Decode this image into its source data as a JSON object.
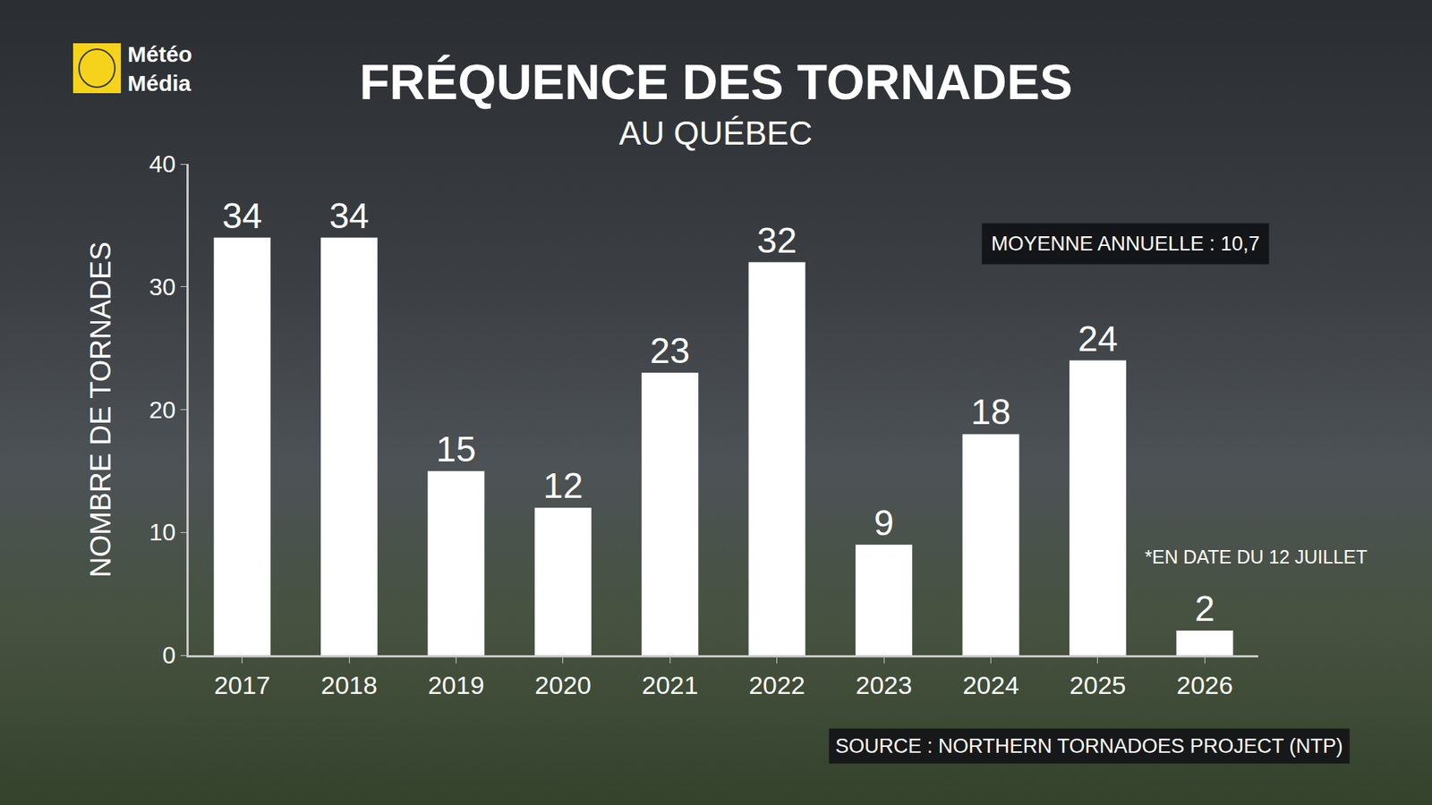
{
  "chart_data": {
    "type": "bar",
    "title": "FRÉQUENCE DES TORNADES",
    "subtitle": "AU QUÉBEC",
    "y_label": "NOMBRE DE TORNADES",
    "categories": [
      "2017",
      "2018",
      "2019",
      "2020",
      "2021",
      "2022",
      "2023",
      "2024",
      "2025",
      "2026"
    ],
    "values": [
      34,
      34,
      15,
      12,
      23,
      32,
      9,
      18,
      24,
      2
    ],
    "color": "#ffffff",
    "ylim": [
      0,
      40
    ],
    "yticks": [
      0,
      10,
      20,
      30,
      40
    ],
    "grid": false,
    "data_labels": true,
    "annotations": [
      "MOYENNE ANNUELLE : 10,7",
      "*EN DATE DU 12 JUILLET"
    ],
    "source": "SOURCE : NORTHERN TORNADOES PROJECT (NTP)",
    "logo": "Météo Média"
  }
}
